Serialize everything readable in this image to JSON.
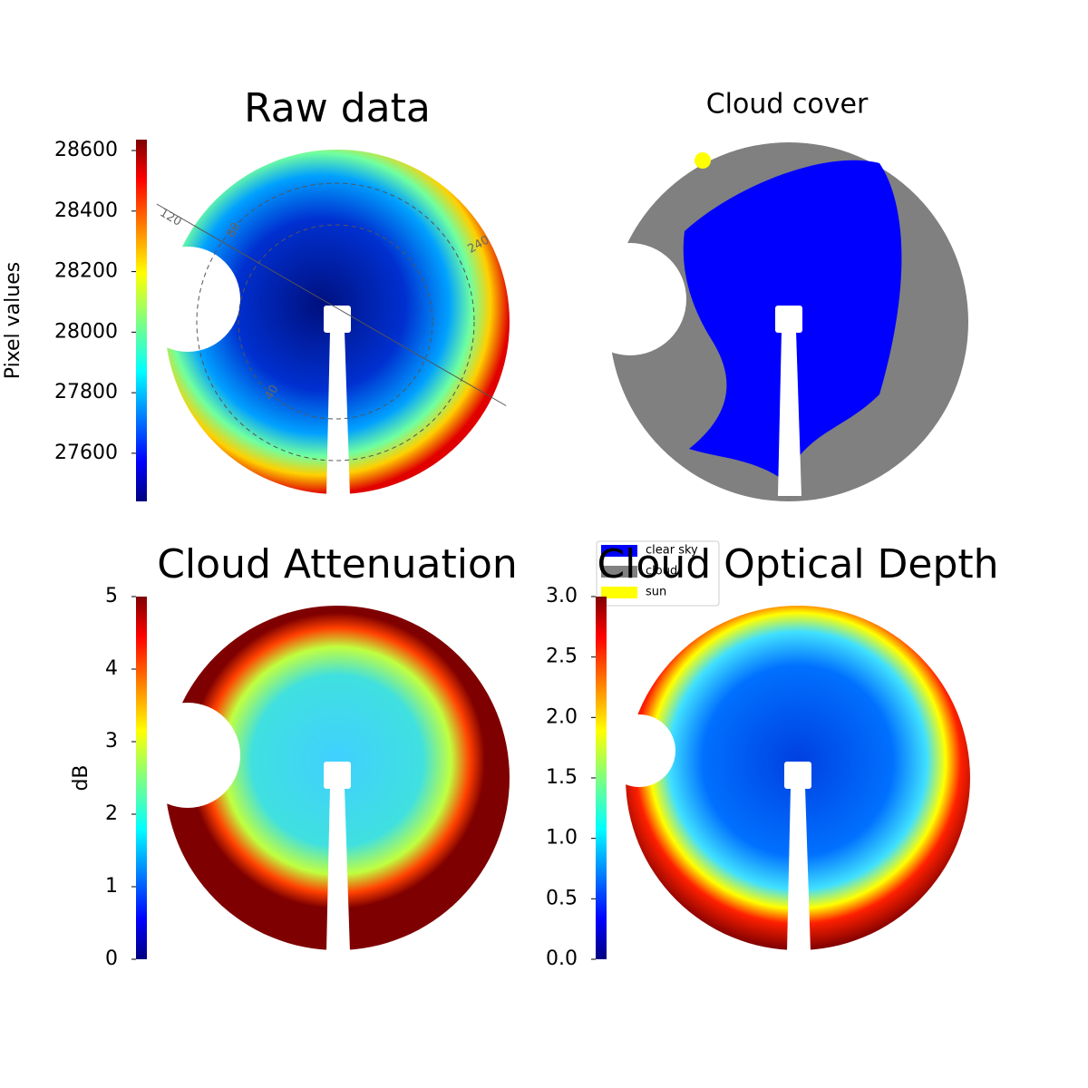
{
  "chart_data": [
    {
      "type": "heatmap",
      "title": "Raw data",
      "ylabel": "Pixel values",
      "colormap": "jet",
      "ylim": [
        27441,
        28636
      ],
      "yticks": [
        27600,
        27800,
        28000,
        28200,
        28400,
        28600
      ],
      "polar_labels": [
        "120",
        "80",
        "240",
        "40"
      ]
    },
    {
      "type": "classification",
      "title": "Cloud cover",
      "legend": [
        {
          "name": "clear sky",
          "color": "#0000ff"
        },
        {
          "name": "cloud",
          "color": "#808080"
        },
        {
          "name": "sun",
          "color": "#ffff00"
        }
      ]
    },
    {
      "type": "heatmap",
      "title": "Cloud Attenuation",
      "ylabel": "dB",
      "colormap": "jet",
      "ylim": [
        0,
        5
      ],
      "yticks": [
        0,
        1,
        2,
        3,
        4,
        5
      ]
    },
    {
      "type": "heatmap",
      "title": "Cloud Optical Depth",
      "colormap": "jet",
      "ylim": [
        0,
        3
      ],
      "yticks": [
        {
          "value": 0,
          "label": "0.0"
        },
        {
          "value": 0.5,
          "label": "0.5"
        },
        {
          "value": 1,
          "label": "1.0"
        },
        {
          "value": 1.5,
          "label": "1.5"
        },
        {
          "value": 2,
          "label": "2.0"
        },
        {
          "value": 2.5,
          "label": "2.5"
        },
        {
          "value": 3,
          "label": "3.0"
        }
      ]
    }
  ]
}
